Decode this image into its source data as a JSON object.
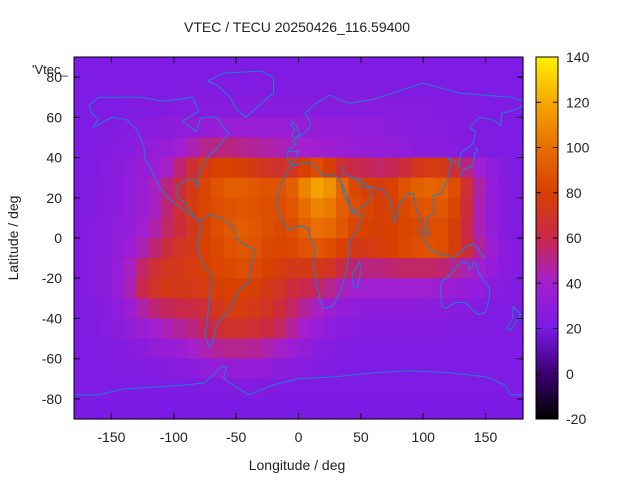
{
  "chart_data": {
    "type": "heatmap",
    "title": "VTEC / TECU 20250426_116.59400",
    "xlabel": "Longitude / deg",
    "ylabel": "Latitude / deg",
    "series_label": "'Vtec_",
    "xlim": [
      -180,
      180
    ],
    "ylim": [
      -90,
      90
    ],
    "x_ticks": [
      -150,
      -100,
      -50,
      0,
      50,
      100,
      150
    ],
    "y_ticks": [
      -80,
      -60,
      -40,
      -20,
      0,
      20,
      40,
      60,
      80
    ],
    "colorbar": {
      "range": [
        -20,
        140
      ],
      "ticks": [
        -20,
        0,
        20,
        40,
        60,
        80,
        100,
        120,
        140
      ],
      "palette": [
        "#000000",
        "#3b0070",
        "#7a1ae6",
        "#a31fcf",
        "#c8284a",
        "#d84000",
        "#e86e00",
        "#f5a800",
        "#fff200"
      ]
    },
    "grid_resolution": {
      "lon_step": 10,
      "lat_step": 10
    },
    "lat_centers": [
      85,
      75,
      65,
      55,
      45,
      35,
      25,
      15,
      5,
      -5,
      -15,
      -25,
      -35,
      -45,
      -55,
      -65,
      -75,
      -85
    ],
    "lon_centers": [
      -175,
      -165,
      -155,
      -145,
      -135,
      -125,
      -115,
      -105,
      -95,
      -85,
      -75,
      -65,
      -55,
      -45,
      -35,
      -25,
      -15,
      -5,
      5,
      15,
      25,
      35,
      45,
      55,
      65,
      75,
      85,
      95,
      105,
      115,
      125,
      135,
      145,
      155,
      165,
      175
    ],
    "values": [
      [
        22,
        22,
        22,
        22,
        22,
        22,
        22,
        22,
        22,
        22,
        22,
        22,
        22,
        22,
        22,
        22,
        22,
        22,
        22,
        22,
        22,
        22,
        22,
        22,
        22,
        22,
        22,
        22,
        22,
        22,
        22,
        22,
        22,
        22,
        22,
        22
      ],
      [
        22,
        22,
        22,
        23,
        23,
        23,
        23,
        23,
        23,
        24,
        24,
        24,
        24,
        24,
        24,
        24,
        24,
        24,
        24,
        24,
        24,
        24,
        24,
        24,
        24,
        24,
        24,
        24,
        23,
        23,
        23,
        23,
        23,
        22,
        22,
        22
      ],
      [
        22,
        22,
        23,
        23,
        24,
        24,
        25,
        25,
        26,
        26,
        27,
        27,
        27,
        27,
        27,
        27,
        27,
        27,
        27,
        27,
        27,
        27,
        27,
        27,
        27,
        27,
        27,
        26,
        26,
        25,
        25,
        24,
        24,
        23,
        23,
        22
      ],
      [
        22,
        23,
        24,
        25,
        26,
        27,
        28,
        29,
        30,
        31,
        33,
        34,
        34,
        34,
        34,
        34,
        34,
        34,
        33,
        33,
        32,
        32,
        31,
        30,
        30,
        29,
        28,
        27,
        27,
        26,
        25,
        25,
        24,
        23,
        23,
        22
      ],
      [
        22,
        23,
        25,
        26,
        28,
        30,
        32,
        34,
        38,
        44,
        50,
        52,
        52,
        50,
        48,
        46,
        44,
        42,
        40,
        39,
        37,
        36,
        34,
        33,
        32,
        31,
        30,
        29,
        28,
        27,
        26,
        25,
        24,
        23,
        23,
        22
      ],
      [
        22,
        24,
        26,
        28,
        30,
        33,
        36,
        42,
        54,
        66,
        76,
        80,
        80,
        78,
        74,
        70,
        68,
        72,
        80,
        86,
        78,
        66,
        60,
        58,
        56,
        58,
        64,
        72,
        76,
        74,
        66,
        52,
        38,
        30,
        26,
        23
      ],
      [
        23,
        25,
        27,
        29,
        32,
        36,
        42,
        52,
        64,
        74,
        82,
        88,
        92,
        92,
        90,
        88,
        88,
        94,
        108,
        118,
        112,
        96,
        84,
        80,
        76,
        80,
        88,
        94,
        96,
        94,
        86,
        66,
        46,
        32,
        27,
        24
      ],
      [
        23,
        25,
        27,
        29,
        32,
        36,
        42,
        54,
        66,
        76,
        82,
        86,
        88,
        90,
        88,
        86,
        86,
        90,
        100,
        108,
        104,
        92,
        86,
        82,
        78,
        80,
        84,
        88,
        90,
        90,
        82,
        64,
        44,
        32,
        27,
        24
      ],
      [
        24,
        26,
        28,
        30,
        33,
        38,
        46,
        56,
        64,
        72,
        80,
        86,
        90,
        92,
        90,
        86,
        84,
        86,
        94,
        100,
        98,
        90,
        82,
        80,
        78,
        80,
        82,
        84,
        86,
        86,
        78,
        62,
        44,
        32,
        27,
        24
      ],
      [
        24,
        26,
        28,
        31,
        36,
        44,
        54,
        64,
        70,
        74,
        80,
        84,
        88,
        90,
        88,
        84,
        82,
        84,
        88,
        90,
        86,
        80,
        74,
        74,
        76,
        80,
        84,
        86,
        88,
        86,
        78,
        64,
        48,
        36,
        29,
        25
      ],
      [
        24,
        26,
        29,
        34,
        42,
        56,
        66,
        72,
        74,
        76,
        80,
        82,
        84,
        86,
        84,
        80,
        76,
        74,
        74,
        74,
        70,
        62,
        54,
        52,
        52,
        54,
        56,
        56,
        56,
        54,
        50,
        44,
        38,
        32,
        28,
        25
      ],
      [
        24,
        26,
        29,
        34,
        44,
        60,
        70,
        74,
        74,
        74,
        76,
        78,
        80,
        80,
        78,
        74,
        70,
        64,
        60,
        56,
        50,
        44,
        40,
        38,
        38,
        38,
        38,
        38,
        38,
        36,
        34,
        32,
        30,
        28,
        26,
        24
      ],
      [
        23,
        25,
        27,
        30,
        36,
        46,
        54,
        58,
        60,
        62,
        66,
        72,
        76,
        76,
        74,
        70,
        64,
        56,
        48,
        42,
        36,
        32,
        30,
        29,
        29,
        29,
        29,
        29,
        28,
        28,
        27,
        26,
        25,
        24,
        24,
        23
      ],
      [
        23,
        24,
        26,
        28,
        31,
        36,
        40,
        44,
        48,
        52,
        58,
        64,
        68,
        68,
        66,
        62,
        56,
        48,
        40,
        34,
        30,
        27,
        26,
        25,
        25,
        25,
        25,
        25,
        25,
        25,
        24,
        24,
        24,
        23,
        23,
        23
      ],
      [
        22,
        23,
        24,
        25,
        27,
        29,
        31,
        33,
        36,
        40,
        44,
        48,
        50,
        50,
        48,
        45,
        41,
        36,
        32,
        28,
        26,
        24,
        23,
        23,
        23,
        23,
        23,
        23,
        23,
        23,
        23,
        23,
        22,
        22,
        22,
        22
      ],
      [
        22,
        22,
        23,
        23,
        24,
        24,
        25,
        26,
        27,
        28,
        30,
        32,
        33,
        33,
        32,
        31,
        29,
        27,
        26,
        25,
        24,
        23,
        23,
        22,
        22,
        22,
        22,
        22,
        22,
        22,
        22,
        22,
        22,
        22,
        22,
        22
      ],
      [
        22,
        22,
        22,
        22,
        22,
        22,
        23,
        23,
        23,
        23,
        24,
        24,
        24,
        24,
        24,
        24,
        23,
        23,
        23,
        23,
        22,
        22,
        22,
        22,
        22,
        22,
        22,
        22,
        22,
        22,
        22,
        22,
        22,
        22,
        22,
        22
      ],
      [
        21,
        21,
        21,
        21,
        21,
        21,
        21,
        21,
        21,
        21,
        21,
        21,
        21,
        21,
        21,
        21,
        21,
        21,
        21,
        21,
        21,
        21,
        21,
        21,
        21,
        21,
        21,
        21,
        21,
        21,
        21,
        21,
        21,
        21,
        21,
        21
      ]
    ]
  }
}
